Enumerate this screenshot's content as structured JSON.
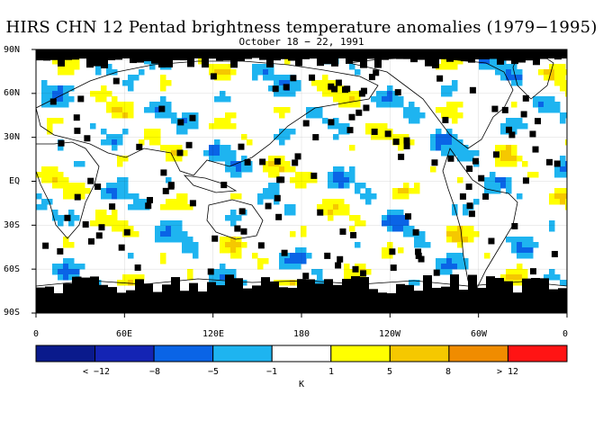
{
  "title": "HIRS CHN 12 Pentad brightness temperature anomalies (1979−1995)",
  "subtitle": "October 18 − 22, 1991",
  "lat_labels": [
    "90N",
    "60N",
    "30N",
    "EQ",
    "30S",
    "60S",
    "90S"
  ],
  "lon_labels": [
    "0",
    "60E",
    "120E",
    "180",
    "120W",
    "60W",
    "0"
  ],
  "colorbar": {
    "colors": [
      "#0a1a8c",
      "#1424b4",
      "#0a64e6",
      "#1eb4f0",
      "#ffffff",
      "#ffff00",
      "#f5c800",
      "#f08c00",
      "#ff1414"
    ],
    "labels": [
      "< −12",
      "−8",
      "−5",
      "−1",
      "1",
      "5",
      "8",
      "> 12"
    ],
    "units": "K"
  },
  "colors": {
    "land_outline": "#000000",
    "missing_data": "#000000"
  }
}
